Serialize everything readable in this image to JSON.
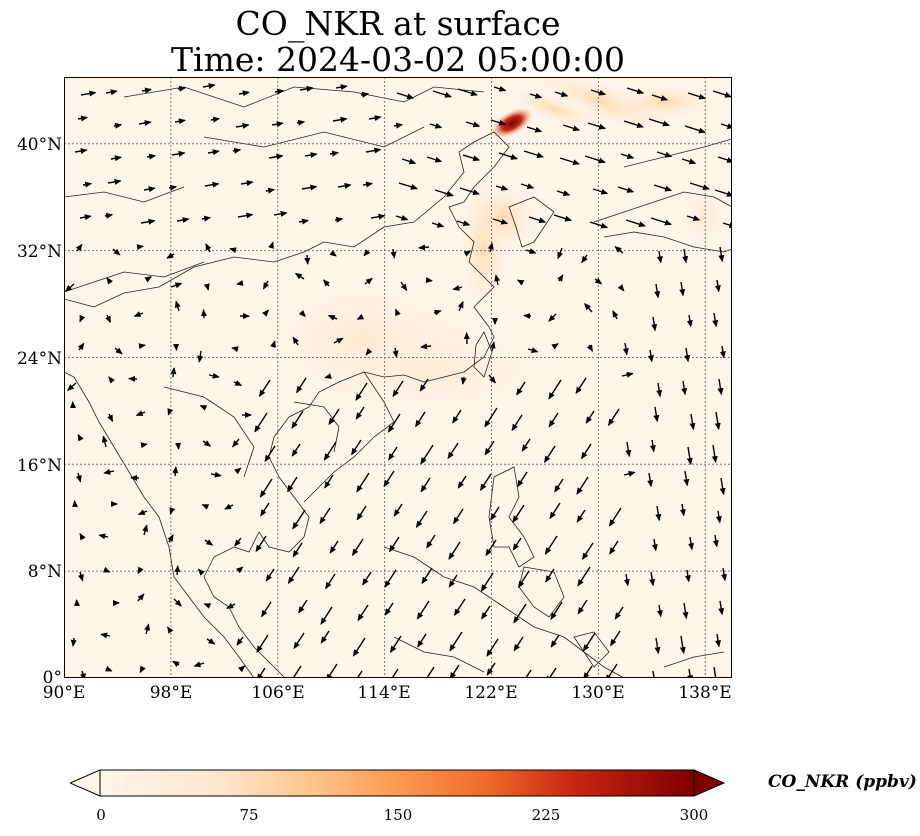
{
  "title": {
    "line1": "CO_NKR at surface",
    "line2": "Time: 2024-03-02 05:00:00"
  },
  "map": {
    "lon_range": [
      90,
      140
    ],
    "lat_range": [
      0,
      45
    ],
    "lat_ticks": [
      {
        "value": 40,
        "label": "40°N"
      },
      {
        "value": 32,
        "label": "32°N"
      },
      {
        "value": 24,
        "label": "24°N"
      },
      {
        "value": 16,
        "label": "16°N"
      },
      {
        "value": 8,
        "label": "8°N"
      },
      {
        "value": 0,
        "label": "0°"
      }
    ],
    "lon_ticks": [
      {
        "value": 90,
        "label": "90°E"
      },
      {
        "value": 98,
        "label": "98°E"
      },
      {
        "value": 106,
        "label": "106°E"
      },
      {
        "value": 114,
        "label": "114°E"
      },
      {
        "value": 122,
        "label": "122°E"
      },
      {
        "value": 130,
        "label": "130°E"
      },
      {
        "value": 138,
        "label": "138°E"
      }
    ],
    "gridlines": true,
    "background_color": "#fff5eb"
  },
  "colorbar": {
    "label": "CO_NKR (ppbv)",
    "min": 0,
    "max": 300,
    "ticks": [
      {
        "value": 0,
        "label": "0"
      },
      {
        "value": 75,
        "label": "75"
      },
      {
        "value": 150,
        "label": "150"
      },
      {
        "value": 225,
        "label": "225"
      },
      {
        "value": 300,
        "label": "300"
      }
    ],
    "colors": [
      "#fff5eb",
      "#fdd49e",
      "#fdae6b",
      "#f16913",
      "#d94801",
      "#a50f15",
      "#7f0000"
    ],
    "extend": "both"
  }
}
